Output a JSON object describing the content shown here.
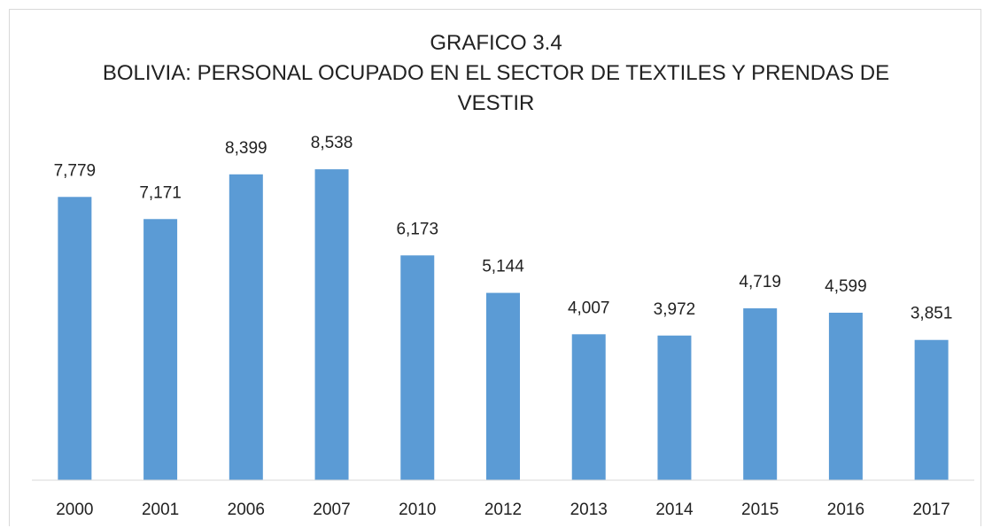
{
  "chart_data": {
    "type": "bar",
    "title": "GRAFICO 3.4",
    "subtitle": "BOLIVIA: PERSONAL OCUPADO EN EL SECTOR DE TEXTILES Y PRENDAS DE VESTIR",
    "categories": [
      "2000",
      "2001",
      "2006",
      "2007",
      "2010",
      "2012",
      "2013",
      "2014",
      "2015",
      "2016",
      "2017"
    ],
    "values": [
      7779,
      7171,
      8399,
      8538,
      6173,
      5144,
      4007,
      3972,
      4719,
      4599,
      3851
    ],
    "value_labels": [
      "7,779",
      "7,171",
      "8,399",
      "8,538",
      "6,173",
      "5,144",
      "4,007",
      "3,972",
      "4,719",
      "4,599",
      "3,851"
    ],
    "color": "#5b9bd5"
  }
}
